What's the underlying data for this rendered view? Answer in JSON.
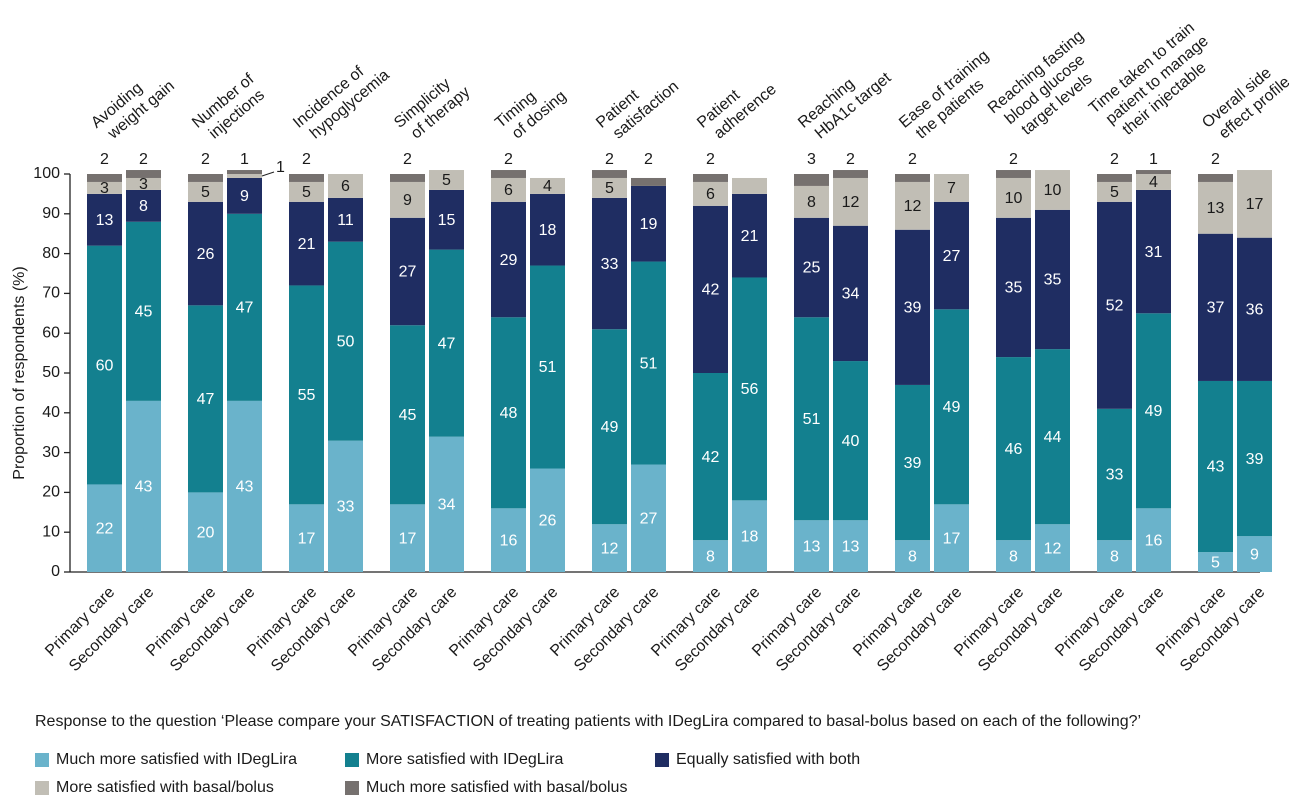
{
  "chart_data": {
    "type": "stacked_bar",
    "ylabel": "Proportion of respondents (%)",
    "caption": "Response to the question ‘Please compare your SATISFACTION of treating patients with IDegLira compared to basal-bolus based on each of the following?’",
    "ylim": [
      0,
      100
    ],
    "yticks": [
      0,
      10,
      20,
      30,
      40,
      50,
      60,
      70,
      80,
      90,
      100
    ],
    "groups": [
      [
        "Avoiding",
        "weight gain"
      ],
      [
        "Number of",
        "injections"
      ],
      [
        "Incidence of",
        "hypoglycemia"
      ],
      [
        "Simplicity",
        "of therapy"
      ],
      [
        "Timing",
        "of dosing"
      ],
      [
        "Patient",
        "satisfaction"
      ],
      [
        "Patient",
        "adherence"
      ],
      [
        "Reaching",
        "HbA1c target"
      ],
      [
        "Ease of training",
        "the patients"
      ],
      [
        "Reaching fasting",
        "blood glucose",
        "target levels"
      ],
      [
        "Time taken to train",
        "patient to manage",
        "their injectable"
      ],
      [
        "Overall side",
        "effect profile"
      ]
    ],
    "categories": [
      "Primary care",
      "Secondary care",
      "Primary care",
      "Secondary care",
      "Primary care",
      "Secondary care",
      "Primary care",
      "Secondary care",
      "Primary care",
      "Secondary care",
      "Primary care",
      "Secondary care",
      "Primary care",
      "Secondary care",
      "Primary care",
      "Secondary care",
      "Primary care",
      "Secondary care",
      "Primary care",
      "Secondary care",
      "Primary care",
      "Secondary care",
      "Primary care",
      "Secondary care"
    ],
    "series": [
      {
        "name": "Much more satisfied with IDegLira",
        "color": "#6ab3cb",
        "label_color": "#ffffff",
        "values": [
          22,
          43,
          20,
          43,
          17,
          33,
          17,
          34,
          16,
          26,
          12,
          27,
          8,
          18,
          13,
          13,
          8,
          17,
          8,
          12,
          8,
          16,
          5,
          9
        ]
      },
      {
        "name": "More satisfied with IDegLira",
        "color": "#13808f",
        "label_color": "#ffffff",
        "values": [
          60,
          45,
          47,
          47,
          55,
          50,
          45,
          47,
          48,
          51,
          49,
          51,
          42,
          56,
          51,
          40,
          39,
          49,
          46,
          44,
          33,
          49,
          43,
          39
        ]
      },
      {
        "name": "Equally satisfied with both",
        "color": "#1f2d62",
        "label_color": "#ffffff",
        "values": [
          13,
          8,
          26,
          9,
          21,
          11,
          27,
          15,
          29,
          18,
          33,
          19,
          42,
          21,
          25,
          34,
          39,
          27,
          35,
          35,
          52,
          31,
          37,
          36
        ]
      },
      {
        "name": "More satisfied with basal/bolus",
        "color": "#c1beb5",
        "label_color": "#1a1a1a",
        "values": [
          3,
          3,
          5,
          1,
          5,
          6,
          9,
          5,
          6,
          4,
          5,
          null,
          6,
          4,
          8,
          12,
          12,
          7,
          10,
          10,
          5,
          4,
          13,
          17
        ],
        "value_labels": [
          "3",
          "3",
          "5",
          "1",
          "5",
          "6",
          "9",
          "5",
          "6",
          "4",
          "5",
          null,
          "6",
          null,
          "8",
          "12",
          "12",
          "7",
          "10",
          "10",
          "5",
          "4",
          "13",
          "17"
        ]
      },
      {
        "name": "Much more satisfied with basal/bolus",
        "color": "#76716f",
        "label_color": "#1a1a1a",
        "values": [
          2,
          2,
          2,
          1,
          2,
          null,
          2,
          null,
          2,
          null,
          2,
          2,
          2,
          null,
          3,
          2,
          2,
          null,
          2,
          null,
          2,
          1,
          2,
          null
        ]
      }
    ]
  }
}
